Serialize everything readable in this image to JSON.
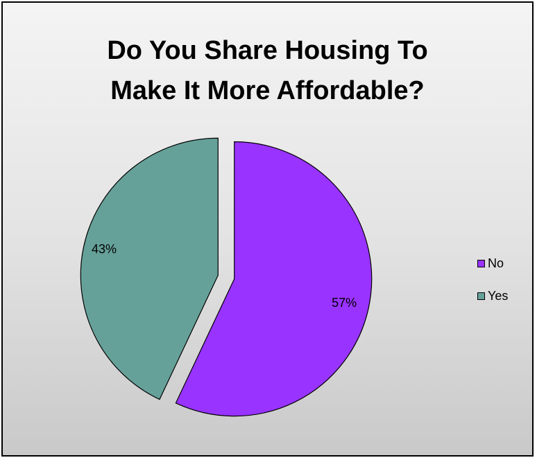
{
  "chart_data": {
    "type": "pie",
    "title": "Do You Share Housing To Make It More Affordable?",
    "title_lines": [
      "Do You Share Housing To",
      "Make It More Affordable?"
    ],
    "categories": [
      "No",
      "Yes"
    ],
    "values": [
      57,
      43
    ],
    "labels": [
      "57%",
      "43%"
    ],
    "colors": [
      "#9933FF",
      "#66A199"
    ],
    "legend_position": "right",
    "legend": [
      {
        "label": "No",
        "color": "#9933FF"
      },
      {
        "label": "Yes",
        "color": "#66A199"
      }
    ]
  }
}
